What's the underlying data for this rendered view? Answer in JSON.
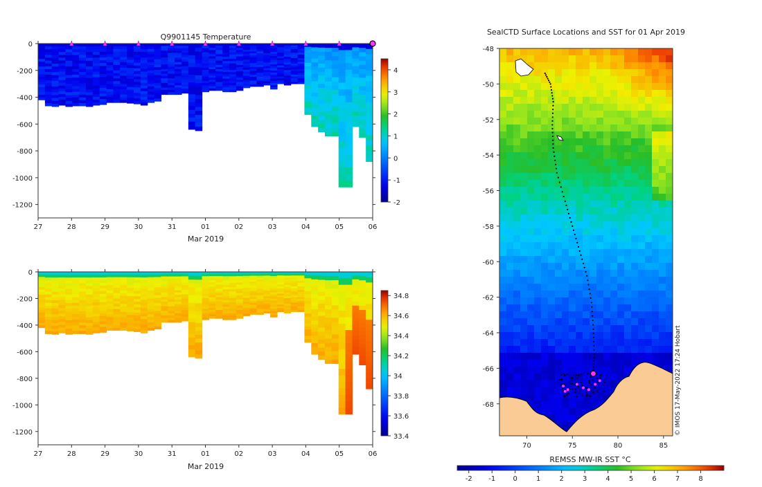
{
  "chart_data": [
    {
      "type": "heatmap",
      "title": "Q9901145  Temperature",
      "xlabel": "Mar 2019",
      "x_ticks": [
        "27",
        "28",
        "29",
        "30",
        "31",
        "01",
        "02",
        "03",
        "04",
        "05",
        "06"
      ],
      "y_ticks": [
        0,
        -200,
        -400,
        -600,
        -800,
        -1000,
        -1200
      ],
      "ylim": [
        -1300,
        0
      ],
      "colorbar": {
        "min": -2,
        "max": 4.5,
        "ticks": [
          4,
          3,
          2,
          1,
          0,
          -1,
          -2
        ]
      },
      "marker_days": [
        1,
        2,
        3,
        4,
        5,
        6,
        7,
        8,
        9
      ],
      "profile_depths": [
        420,
        465,
        470,
        460,
        470,
        465,
        465,
        470,
        460,
        455,
        440,
        440,
        440,
        445,
        450,
        460,
        440,
        430,
        380,
        380,
        380,
        370,
        640,
        650,
        360,
        350,
        350,
        360,
        360,
        350,
        330,
        320,
        320,
        310,
        340,
        300,
        310,
        300,
        300,
        530,
        620,
        660,
        690,
        690,
        1070,
        1070,
        620,
        700,
        880
      ]
    },
    {
      "type": "heatmap",
      "title": "",
      "xlabel": "Mar 2019",
      "x_ticks": [
        "27",
        "28",
        "29",
        "30",
        "31",
        "01",
        "02",
        "03",
        "04",
        "05",
        "06"
      ],
      "y_ticks": [
        0,
        -200,
        -400,
        -600,
        -800,
        -1000,
        -1200
      ],
      "ylim": [
        -1300,
        0
      ],
      "colorbar": {
        "min": 33.4,
        "max": 34.85,
        "ticks": [
          34.8,
          34.6,
          34.4,
          34.2,
          34,
          33.8,
          33.6,
          33.4
        ]
      },
      "profile_depths": [
        420,
        465,
        470,
        460,
        470,
        465,
        465,
        470,
        460,
        455,
        440,
        440,
        440,
        445,
        450,
        460,
        440,
        430,
        380,
        380,
        380,
        370,
        640,
        650,
        360,
        350,
        350,
        360,
        360,
        350,
        330,
        320,
        320,
        310,
        340,
        300,
        310,
        300,
        300,
        530,
        620,
        660,
        690,
        690,
        1070,
        1070,
        620,
        700,
        880
      ]
    },
    {
      "type": "map",
      "title": "SealCTD Surface Locations and SST for 01 Apr 2019",
      "x_ticks": [
        70,
        75,
        80,
        85
      ],
      "y_ticks": [
        -48,
        -50,
        -52,
        -54,
        -56,
        -58,
        -60,
        -62,
        -64,
        -66,
        -68
      ],
      "xlim": [
        67,
        86
      ],
      "ylim": [
        -69.8,
        -48
      ],
      "colorbar": {
        "label": "REMSS MW-IR SST °C",
        "min": -2.5,
        "max": 9,
        "ticks": [
          -2,
          -1,
          0,
          1,
          2,
          3,
          4,
          5,
          6,
          7,
          8
        ]
      },
      "credit": "© IMOS 17-May-2022 17:24 Hobart",
      "track": [
        [
          72,
          -49.4
        ],
        [
          72.6,
          -50.0
        ],
        [
          72.9,
          -51.0
        ],
        [
          72.8,
          -52.3
        ],
        [
          72.9,
          -53.6
        ],
        [
          73.3,
          -55.0
        ],
        [
          74.2,
          -56.6
        ],
        [
          75.0,
          -58.0
        ],
        [
          75.8,
          -59.4
        ],
        [
          76.6,
          -60.8
        ],
        [
          77.1,
          -62.3
        ],
        [
          77.3,
          -63.8
        ],
        [
          77.4,
          -65.2
        ],
        [
          77.3,
          -66.3
        ]
      ],
      "last_position": [
        77.3,
        -66.3
      ],
      "recent_positions": [
        [
          74.0,
          -67.0
        ],
        [
          74.5,
          -67.2
        ],
        [
          75.5,
          -66.9
        ],
        [
          76.2,
          -67.1
        ],
        [
          76.8,
          -67.2
        ],
        [
          77.5,
          -66.9
        ],
        [
          78.0,
          -66.7
        ],
        [
          74.2,
          -67.3
        ]
      ]
    }
  ]
}
